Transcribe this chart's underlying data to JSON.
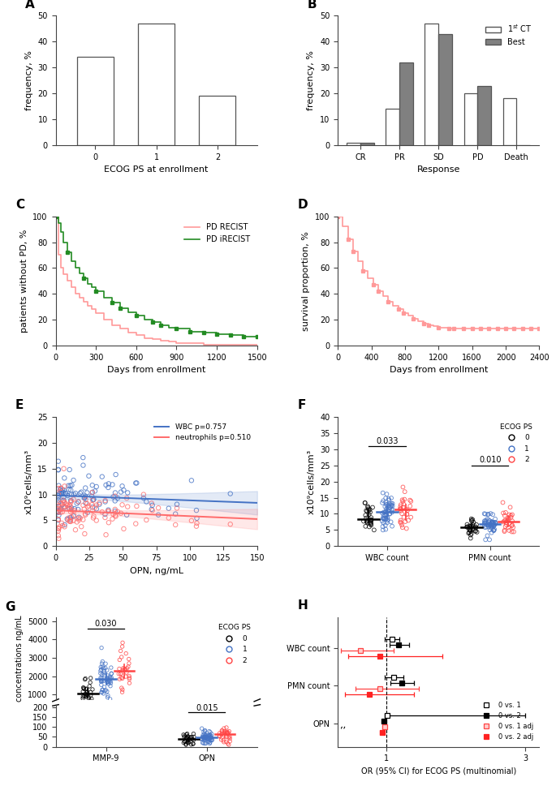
{
  "A": {
    "categories": [
      0,
      1,
      2
    ],
    "values": [
      34,
      47,
      19
    ],
    "xlabel": "ECOG PS at enrollment",
    "ylabel": "frequency, %",
    "ylim": [
      0,
      50
    ],
    "yticks": [
      0,
      10,
      20,
      30,
      40,
      50
    ]
  },
  "B": {
    "categories": [
      "CR",
      "PR",
      "SD",
      "PD",
      "Death"
    ],
    "values_1ct": [
      1,
      14,
      47,
      20,
      18
    ],
    "values_best": [
      1,
      32,
      43,
      23,
      0
    ],
    "xlabel": "Response",
    "ylabel": "frequency, %",
    "ylim": [
      0,
      50
    ],
    "yticks": [
      0,
      10,
      20,
      30,
      40,
      50
    ],
    "color_best": "#808080"
  },
  "C": {
    "xlabel": "Days from enrollment",
    "ylabel": "patients without PD, %",
    "ylim": [
      0,
      100
    ],
    "yticks": [
      0,
      20,
      40,
      60,
      80,
      100
    ],
    "xlim": [
      0,
      1500
    ],
    "xticks": [
      0,
      300,
      600,
      900,
      1200,
      1500
    ],
    "color_recist": "#FF9999",
    "color_irecist": "#228B22",
    "label_recist": "PD RECIST",
    "label_irecist": "PD iRECIST",
    "recist_x": [
      0,
      20,
      40,
      60,
      90,
      120,
      150,
      180,
      210,
      240,
      270,
      300,
      360,
      420,
      480,
      540,
      600,
      660,
      720,
      780,
      840,
      900,
      1000,
      1100,
      1200,
      1300,
      1400,
      1500
    ],
    "recist_y": [
      100,
      70,
      60,
      55,
      50,
      45,
      40,
      37,
      34,
      31,
      28,
      25,
      20,
      16,
      13,
      10,
      8,
      6,
      5,
      4,
      3,
      2,
      2,
      1,
      1,
      1,
      1,
      1
    ],
    "irecist_x": [
      0,
      20,
      40,
      60,
      90,
      120,
      150,
      180,
      210,
      240,
      270,
      300,
      360,
      420,
      480,
      540,
      600,
      660,
      720,
      780,
      840,
      900,
      1000,
      1100,
      1200,
      1300,
      1400,
      1500
    ],
    "irecist_y": [
      100,
      95,
      88,
      80,
      72,
      65,
      60,
      56,
      52,
      48,
      45,
      42,
      37,
      33,
      29,
      26,
      23,
      20,
      18,
      16,
      14,
      13,
      11,
      10,
      9,
      8,
      7,
      7
    ]
  },
  "D": {
    "xlabel": "Days from enrollment",
    "ylabel": "survival proportion, %",
    "ylim": [
      0,
      100
    ],
    "yticks": [
      0,
      20,
      40,
      60,
      80,
      100
    ],
    "xlim": [
      0,
      2400
    ],
    "xticks": [
      0,
      400,
      800,
      1200,
      1600,
      2000,
      2400
    ],
    "color": "#FF9999",
    "surv_x": [
      0,
      60,
      120,
      180,
      240,
      300,
      360,
      420,
      480,
      540,
      600,
      660,
      720,
      780,
      840,
      900,
      960,
      1020,
      1080,
      1140,
      1200,
      1260,
      1320,
      1380,
      1440,
      1500,
      1600,
      1700,
      1800,
      1900,
      2000,
      2100,
      2200,
      2300,
      2400
    ],
    "surv_y": [
      100,
      92,
      82,
      73,
      65,
      58,
      52,
      47,
      42,
      38,
      34,
      31,
      28,
      25,
      23,
      21,
      19,
      17,
      16,
      15,
      14,
      14,
      13,
      13,
      13,
      13,
      13,
      13,
      13,
      13,
      13,
      13,
      13,
      13,
      13
    ]
  },
  "E": {
    "xlabel": "OPN, ng/mL",
    "ylabel": "x10⁹cells/mm³",
    "xlim": [
      0,
      150
    ],
    "xticks": [
      0,
      25,
      50,
      75,
      100,
      125,
      150
    ],
    "ylim": [
      0,
      25
    ],
    "yticks": [
      0,
      5,
      10,
      15,
      20,
      25
    ],
    "wbc_color": "#4472C4",
    "neut_color": "#FF6B6B",
    "label_wbc": "WBC p=0.757",
    "label_neut": "neutrophils p=0.510"
  },
  "F": {
    "ylabel": "x10⁹cells/mm³",
    "ylim": [
      0,
      40
    ],
    "yticks": [
      0,
      5,
      10,
      15,
      20,
      25,
      30,
      35,
      40
    ],
    "categories": [
      "WBC count",
      "PMN count"
    ],
    "pval_wbc": "0.033",
    "pval_pmn": "0.010",
    "ecog_colors": [
      "#000000",
      "#4472C4",
      "#FF4444"
    ],
    "ecog_labels": [
      "0",
      "1",
      "2"
    ]
  },
  "G": {
    "ylabel": "concentrations ng/mL",
    "pval_mmp9": "0.030",
    "pval_opn": "0.015",
    "ecog_colors": [
      "#000000",
      "#4472C4",
      "#FF4444"
    ],
    "ecog_labels": [
      "0",
      "1",
      "2"
    ],
    "mmp9_yticks": [
      0,
      1000,
      2000,
      3000,
      4000,
      5000
    ],
    "mmp9_ylim": [
      0,
      5000
    ],
    "opn_yticks": [
      0,
      50,
      100,
      150,
      200
    ],
    "opn_ylim": [
      0,
      200
    ]
  },
  "H": {
    "xlabel": "OR (95% CI) for ECOG PS (multinomial)",
    "xlim": [
      0.3,
      3.2
    ],
    "xticks": [
      1,
      3
    ],
    "categories": [
      "WBC count",
      "PMN count",
      "OPN"
    ],
    "legend_labels": [
      "0 vs. 1",
      "0 vs. 2",
      "0 vs. 1 adj",
      "0 vs. 2 adj"
    ],
    "wbc_0v1": [
      1.08,
      0.98,
      1.19
    ],
    "wbc_0v2": [
      1.18,
      1.05,
      1.33
    ],
    "wbc_0v1adj": [
      0.62,
      0.35,
      1.1
    ],
    "wbc_0v2adj": [
      0.9,
      0.45,
      1.8
    ],
    "pmn_0v1": [
      1.1,
      0.98,
      1.24
    ],
    "pmn_0v2": [
      1.22,
      1.06,
      1.4
    ],
    "pmn_0v1adj": [
      0.9,
      0.55,
      1.47
    ],
    "pmn_0v2adj": [
      0.75,
      0.4,
      1.4
    ],
    "opn_0v1": [
      1.01,
      0.98,
      3.0
    ],
    "opn_0v2": [
      0.96,
      0.93,
      0.99
    ],
    "opn_0v1adj": [
      0.97,
      0.94,
      1.0
    ],
    "opn_0v2adj": [
      0.94,
      0.91,
      0.98
    ]
  },
  "background_color": "#ffffff",
  "bar_edge_color": "#555555"
}
